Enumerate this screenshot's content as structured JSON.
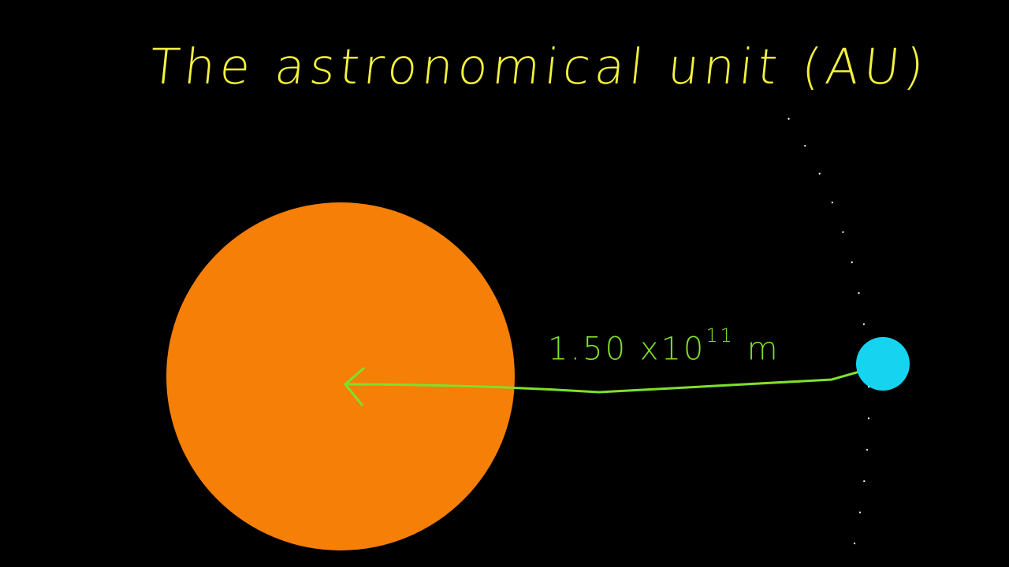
{
  "title": "The astronomical unit (AU)",
  "distance": {
    "mantissa": "1.50",
    "times": "x",
    "base": "10",
    "exponent": "11",
    "unit": "m"
  },
  "colors": {
    "background": "#000000",
    "title": "#f4f23e",
    "sun": "#f57f07",
    "earth": "#16d4f0",
    "arrow": "#7fe02a",
    "orbit": "#ffffff"
  }
}
